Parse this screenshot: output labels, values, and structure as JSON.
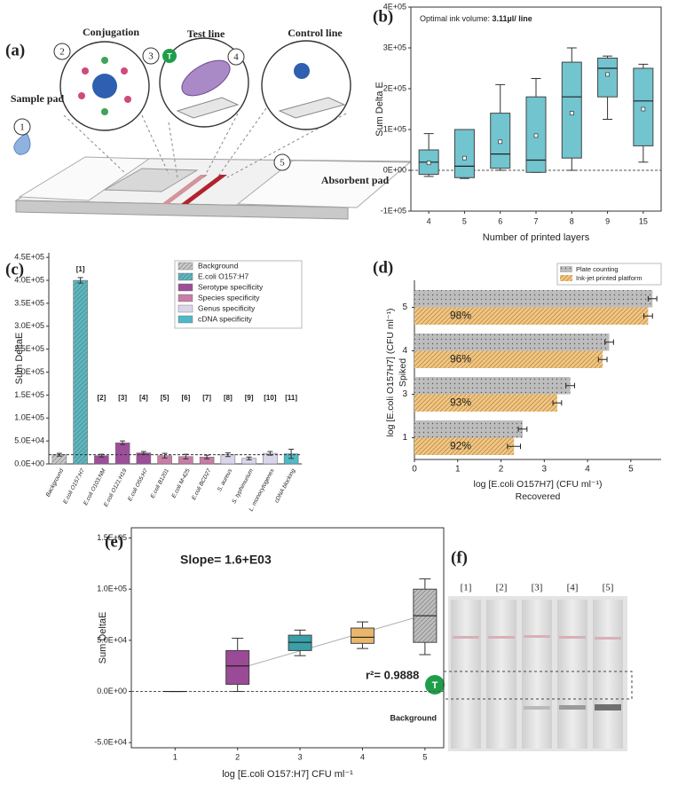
{
  "panel_labels": [
    "(a)",
    "(b)",
    "(c)",
    "(d)",
    "(e)",
    "(f)"
  ],
  "diagram": {
    "sample_pad": "Sample pad",
    "conjugation": "Conjugation",
    "test_line": "Test line",
    "control_line": "Control line",
    "absorbent_pad": "Absorbent pad",
    "steps": [
      "1",
      "2",
      "3",
      "4",
      "5"
    ],
    "badge": "T"
  },
  "chart_data": [
    {
      "type": "box",
      "annotation": "Optimal ink volume: ",
      "annotation_value": "3.11µl/ line",
      "xlabel": "Number of printed layers",
      "ylabel": "Sum Delta E",
      "categories": [
        "4",
        "5",
        "6",
        "7",
        "8",
        "9",
        "15"
      ],
      "whisker_low": [
        -15000,
        -20000,
        0,
        -5000,
        0,
        125000,
        20000
      ],
      "q1": [
        -10000,
        -18000,
        5000,
        -5000,
        30000,
        180000,
        60000
      ],
      "median": [
        20000,
        10000,
        40000,
        25000,
        180000,
        250000,
        170000
      ],
      "q3": [
        50000,
        100000,
        140000,
        180000,
        265000,
        275000,
        250000
      ],
      "whisker_high": [
        90000,
        100000,
        210000,
        225000,
        300000,
        280000,
        260000
      ],
      "mean": [
        18000,
        30000,
        70000,
        85000,
        140000,
        235000,
        150000
      ],
      "color": "#72c4cf",
      "ylim": [
        -100000,
        400000
      ],
      "yticks": [
        {
          "value": -100000,
          "label": "-1E+05"
        },
        {
          "value": 0,
          "label": "0E+00"
        },
        {
          "value": 100000,
          "label": "1E+05"
        },
        {
          "value": 200000,
          "label": "2E+05"
        },
        {
          "value": 300000,
          "label": "3E+05"
        },
        {
          "value": 400000,
          "label": "4E+05"
        }
      ],
      "reference_line": 0
    },
    {
      "type": "bar",
      "ylabel": "Sum DeltaE",
      "categories": [
        "Background",
        "E.coli O157:H7",
        "E.coli O103:NM",
        "E.coli O121:H19",
        "E.coli O55:H7",
        "E.coli B1201",
        "E.coli M-425",
        "E.coli BCD27",
        "S. aureus",
        "S. typhimurium",
        "L. monocytogenes",
        "cDNA blocking"
      ],
      "values": [
        20000,
        400000,
        18000,
        46000,
        24000,
        18000,
        16000,
        15000,
        20000,
        12000,
        23000,
        22000
      ],
      "errors": [
        3000,
        6000,
        3000,
        4000,
        3000,
        5000,
        5000,
        4000,
        4000,
        3000,
        4000,
        10000
      ],
      "bar_labels": [
        null,
        "[1]",
        "[2]",
        "[3]",
        "[4]",
        "[5]",
        "[6]",
        "[7]",
        "[8]",
        "[9]",
        "[10]",
        "[11]"
      ],
      "colors": [
        "#c8c8c8",
        "#5bb8c0",
        "#9c4f98",
        "#9c4f98",
        "#9c4f98",
        "#c77da6",
        "#c77da6",
        "#c77da6",
        "#d9d6ec",
        "#d9d6ec",
        "#d9d6ec",
        "#4fb9c6"
      ],
      "legend": [
        {
          "name": "Background",
          "color": "#c8c8c8",
          "pattern": "hatch"
        },
        {
          "name": "E.coli O157:H7",
          "color": "#5bb8c0",
          "pattern": "hatch"
        },
        {
          "name": "Serotype specificity",
          "color": "#9c4f98",
          "pattern": "solid"
        },
        {
          "name": "Species specificity",
          "color": "#c77da6",
          "pattern": "solid"
        },
        {
          "name": "Genus specificity",
          "color": "#d9d6ec",
          "pattern": "solid"
        },
        {
          "name": "cDNA specificity",
          "color": "#4fb9c6",
          "pattern": "solid"
        }
      ],
      "ylim": [
        0,
        460000
      ],
      "yticks": [
        {
          "value": 0,
          "label": "0.0E+00"
        },
        {
          "value": 50000,
          "label": "5.0E+04"
        },
        {
          "value": 100000,
          "label": "1.0E+05"
        },
        {
          "value": 150000,
          "label": "1.5E+05"
        },
        {
          "value": 200000,
          "label": "2.0E+05"
        },
        {
          "value": 250000,
          "label": "2.5E+05"
        },
        {
          "value": 300000,
          "label": "3.0E+05"
        },
        {
          "value": 350000,
          "label": "3.5E+05"
        },
        {
          "value": 400000,
          "label": "4.0E+05"
        },
        {
          "value": 450000,
          "label": "4.5E+05"
        }
      ],
      "reference_line": 20000
    },
    {
      "type": "hbar",
      "xlabel": "log [E.coli O157H7] (CFU ml⁻¹)",
      "xlabel_sub": "Recovered",
      "ylabel": "log [E.coli O157H7] (CFU ml⁻¹)",
      "ylabel_sub": "Spiked",
      "categories": [
        "5",
        "4",
        "3",
        "1"
      ],
      "series": [
        {
          "name": "Plate counting",
          "color": "#bdbdbd",
          "pattern": "dots",
          "values": [
            5.5,
            4.5,
            3.6,
            2.5
          ],
          "errors": [
            0.1,
            0.1,
            0.1,
            0.1
          ]
        },
        {
          "name": "Ink-jet printed platform",
          "color": "#f6c57a",
          "pattern": "hatch",
          "values": [
            5.4,
            4.35,
            3.3,
            2.3
          ],
          "errors": [
            0.1,
            0.1,
            0.1,
            0.15
          ]
        }
      ],
      "annotations": [
        "98%",
        "96%",
        "93%",
        "92%"
      ],
      "xlim": [
        0,
        5.7
      ],
      "xticks": [
        0,
        1,
        2,
        3,
        4,
        5
      ],
      "legend": "top right"
    },
    {
      "type": "box",
      "xlabel": "log [E.coli O157:H7] CFU ml⁻¹",
      "ylabel": "Sum DeltaE",
      "x": [
        1,
        2,
        3,
        4,
        5
      ],
      "whisker_low": [
        0,
        0,
        35000,
        42000,
        36000
      ],
      "q1": [
        0,
        7000,
        40000,
        47000,
        48000
      ],
      "median": [
        0,
        25000,
        48000,
        53000,
        74000
      ],
      "q3": [
        0,
        40000,
        55000,
        62000,
        100000
      ],
      "whisker_high": [
        0,
        52000,
        60000,
        68000,
        110000
      ],
      "colors": [
        "#555555",
        "#9b4a97",
        "#3a9fa8",
        "#e9b76b",
        "#bdbdbd"
      ],
      "patterns": [
        "solid",
        "solid",
        "solid",
        "solid",
        "hatch"
      ],
      "xlim": [
        0.3,
        5.3
      ],
      "xticks": [
        1,
        2,
        3,
        4,
        5
      ],
      "ylim": [
        -55000,
        160000
      ],
      "yticks": [
        {
          "value": -50000,
          "label": "-5.0E+04"
        },
        {
          "value": 0,
          "label": "0.0E+00"
        },
        {
          "value": 50000,
          "label": "5.0E+04"
        },
        {
          "value": 100000,
          "label": "1.0E+05"
        },
        {
          "value": 150000,
          "label": "1.5E+05"
        }
      ],
      "reference_line": 0,
      "fit_line": {
        "x": [
          2,
          5
        ],
        "y": [
          22000,
          75000
        ]
      },
      "annotations": [
        "Slope= 1.6+E03",
        "r²= 0.9888",
        "Background"
      ]
    }
  ],
  "strip_photo": {
    "lanes": [
      "[1]",
      "[2]",
      "[3]",
      "[4]",
      "[5]"
    ],
    "badge": "T"
  }
}
